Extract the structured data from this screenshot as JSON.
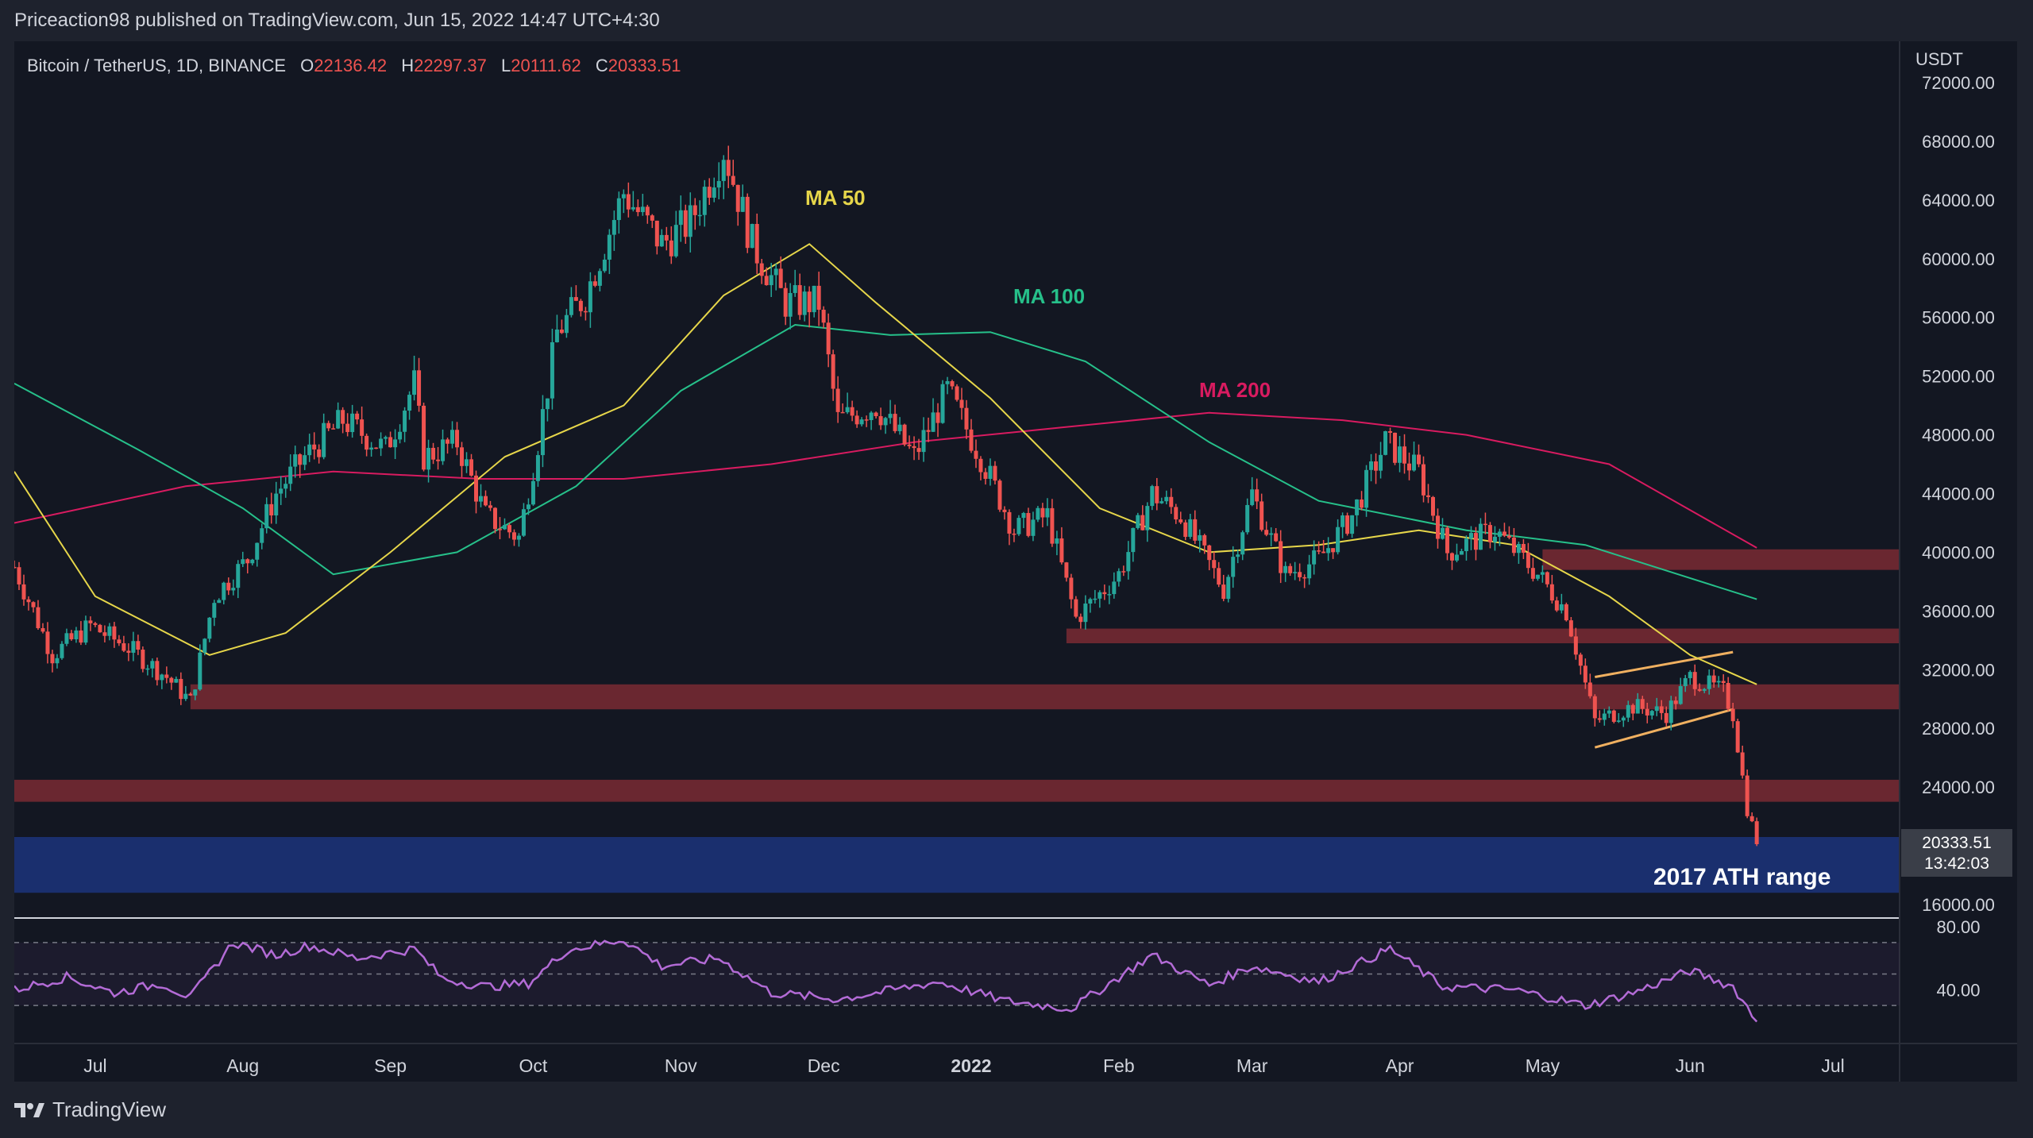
{
  "header": {
    "published_text": "Priceaction98 published on TradingView.com, Jun 15, 2022 14:47 UTC+4:30"
  },
  "legend": {
    "symbol": "Bitcoin / TetherUS, 1D, BINANCE",
    "o_label": "O",
    "o_value": "22136.42",
    "h_label": "H",
    "h_value": "22297.37",
    "l_label": "L",
    "l_value": "20111.62",
    "c_label": "C",
    "c_value": "20333.51"
  },
  "price_axis": {
    "currency": "USDT",
    "ticks": [
      "72000.00",
      "68000.00",
      "64000.00",
      "60000.00",
      "56000.00",
      "52000.00",
      "48000.00",
      "44000.00",
      "40000.00",
      "36000.00",
      "32000.00",
      "28000.00",
      "24000.00",
      "16000.00"
    ],
    "last_price": "20333.51",
    "countdown": "13:42:03"
  },
  "rsi_axis": {
    "ticks": [
      "80.00",
      "40.00"
    ]
  },
  "time_axis": {
    "labels": [
      "Jul",
      "Aug",
      "Sep",
      "Oct",
      "Nov",
      "Dec",
      "2022",
      "Feb",
      "Mar",
      "Apr",
      "May",
      "Jun",
      "Jul"
    ]
  },
  "annotations": {
    "ma50": "MA 50",
    "ma100": "MA 100",
    "ma200": "MA 200",
    "ath_range": "2017 ATH range"
  },
  "colors": {
    "bull": "#26a69a",
    "bear": "#ef5350",
    "ma50": "#e6d64a",
    "ma100": "#26c08a",
    "ma200": "#d81b60",
    "rsi": "#b36bd6",
    "zone": "#7a2a33",
    "ath_zone": "#1a2f6e",
    "wedge": "#f0b060"
  },
  "footer": {
    "brand": "TradingView"
  },
  "chart_data": {
    "type": "candlestick",
    "title": "Bitcoin / TetherUS, 1D, BINANCE",
    "ylabel": "USDT",
    "ylim": [
      16000,
      72000
    ],
    "x_start": "2021-06-14",
    "x_end": "2022-07-15",
    "close_path": [
      [
        "2021-06-14",
        39000
      ],
      [
        "2021-06-22",
        33000
      ],
      [
        "2021-06-30",
        35000
      ],
      [
        "2021-07-08",
        33500
      ],
      [
        "2021-07-16",
        31500
      ],
      [
        "2021-07-21",
        29800
      ],
      [
        "2021-07-26",
        37000
      ],
      [
        "2021-08-02",
        39500
      ],
      [
        "2021-08-08",
        44000
      ],
      [
        "2021-08-14",
        46500
      ],
      [
        "2021-08-22",
        49000
      ],
      [
        "2021-08-31",
        47000
      ],
      [
        "2021-09-06",
        51500
      ],
      [
        "2021-09-08",
        46500
      ],
      [
        "2021-09-15",
        47500
      ],
      [
        "2021-09-21",
        42500
      ],
      [
        "2021-09-28",
        41000
      ],
      [
        "2021-10-02",
        47500
      ],
      [
        "2021-10-06",
        55000
      ],
      [
        "2021-10-12",
        57500
      ],
      [
        "2021-10-20",
        64500
      ],
      [
        "2021-10-28",
        61000
      ],
      [
        "2021-11-03",
        62500
      ],
      [
        "2021-11-10",
        67500
      ],
      [
        "2021-11-16",
        61000
      ],
      [
        "2021-11-23",
        57000
      ],
      [
        "2021-11-30",
        57000
      ],
      [
        "2021-12-04",
        49000
      ],
      [
        "2021-12-12",
        50000
      ],
      [
        "2021-12-20",
        46500
      ],
      [
        "2021-12-27",
        51000
      ],
      [
        "2022-01-03",
        46500
      ],
      [
        "2022-01-10",
        41500
      ],
      [
        "2022-01-17",
        42500
      ],
      [
        "2022-01-23",
        35500
      ],
      [
        "2022-02-01",
        38500
      ],
      [
        "2022-02-08",
        44000
      ],
      [
        "2022-02-14",
        42500
      ],
      [
        "2022-02-23",
        37500
      ],
      [
        "2022-03-01",
        44000
      ],
      [
        "2022-03-08",
        38500
      ],
      [
        "2022-03-15",
        39500
      ],
      [
        "2022-03-22",
        42500
      ],
      [
        "2022-03-29",
        47500
      ],
      [
        "2022-04-05",
        45500
      ],
      [
        "2022-04-11",
        40000
      ],
      [
        "2022-04-21",
        41500
      ],
      [
        "2022-04-30",
        38500
      ],
      [
        "2022-05-06",
        36000
      ],
      [
        "2022-05-10",
        31000
      ],
      [
        "2022-05-12",
        28500
      ],
      [
        "2022-05-20",
        29500
      ],
      [
        "2022-05-27",
        29000
      ],
      [
        "2022-06-01",
        31500
      ],
      [
        "2022-06-08",
        30500
      ],
      [
        "2022-06-10",
        29000
      ],
      [
        "2022-06-13",
        22500
      ],
      [
        "2022-06-15",
        20333
      ]
    ],
    "ma50_path": [
      [
        "2021-06-14",
        45500
      ],
      [
        "2021-07-01",
        37000
      ],
      [
        "2021-07-25",
        33000
      ],
      [
        "2021-08-10",
        34500
      ],
      [
        "2021-09-01",
        40000
      ],
      [
        "2021-09-25",
        46500
      ],
      [
        "2021-10-20",
        50000
      ],
      [
        "2021-11-10",
        57500
      ],
      [
        "2021-11-28",
        61000
      ],
      [
        "2021-12-12",
        57000
      ],
      [
        "2022-01-05",
        50500
      ],
      [
        "2022-01-28",
        43000
      ],
      [
        "2022-02-20",
        40000
      ],
      [
        "2022-03-15",
        40500
      ],
      [
        "2022-04-05",
        41500
      ],
      [
        "2022-04-25",
        40500
      ],
      [
        "2022-05-15",
        37000
      ],
      [
        "2022-06-01",
        33000
      ],
      [
        "2022-06-15",
        31000
      ]
    ],
    "ma100_path": [
      [
        "2021-06-14",
        51500
      ],
      [
        "2021-07-10",
        47000
      ],
      [
        "2021-08-01",
        43000
      ],
      [
        "2021-08-20",
        38500
      ],
      [
        "2021-09-15",
        40000
      ],
      [
        "2021-10-10",
        44500
      ],
      [
        "2021-11-01",
        51000
      ],
      [
        "2021-11-25",
        55500
      ],
      [
        "2021-12-15",
        54800
      ],
      [
        "2022-01-05",
        55000
      ],
      [
        "2022-01-25",
        53000
      ],
      [
        "2022-02-20",
        47500
      ],
      [
        "2022-03-15",
        43500
      ],
      [
        "2022-04-15",
        41500
      ],
      [
        "2022-05-10",
        40500
      ],
      [
        "2022-06-15",
        36800
      ]
    ],
    "ma200_path": [
      [
        "2021-06-14",
        42000
      ],
      [
        "2021-07-20",
        44500
      ],
      [
        "2021-08-20",
        45500
      ],
      [
        "2021-09-20",
        45000
      ],
      [
        "2021-10-20",
        45000
      ],
      [
        "2021-11-20",
        46000
      ],
      [
        "2021-12-20",
        47500
      ],
      [
        "2022-01-20",
        48500
      ],
      [
        "2022-02-20",
        49500
      ],
      [
        "2022-03-20",
        49000
      ],
      [
        "2022-04-15",
        48000
      ],
      [
        "2022-05-15",
        46000
      ],
      [
        "2022-06-15",
        40300
      ]
    ],
    "rsi_path": [
      [
        "2021-06-14",
        40
      ],
      [
        "2021-06-25",
        48
      ],
      [
        "2021-07-05",
        38
      ],
      [
        "2021-07-15",
        44
      ],
      [
        "2021-07-21",
        35
      ],
      [
        "2021-07-30",
        70
      ],
      [
        "2021-08-08",
        62
      ],
      [
        "2021-08-15",
        68
      ],
      [
        "2021-08-25",
        60
      ],
      [
        "2021-09-06",
        66
      ],
      [
        "2021-09-12",
        47
      ],
      [
        "2021-09-21",
        42
      ],
      [
        "2021-09-30",
        44
      ],
      [
        "2021-10-08",
        65
      ],
      [
        "2021-10-20",
        72
      ],
      [
        "2021-10-28",
        55
      ],
      [
        "2021-11-09",
        60
      ],
      [
        "2021-11-20",
        38
      ],
      [
        "2021-12-04",
        34
      ],
      [
        "2021-12-12",
        38
      ],
      [
        "2021-12-25",
        45
      ],
      [
        "2022-01-08",
        33
      ],
      [
        "2022-01-22",
        28
      ],
      [
        "2022-02-08",
        62
      ],
      [
        "2022-02-20",
        43
      ],
      [
        "2022-03-01",
        55
      ],
      [
        "2022-03-15",
        45
      ],
      [
        "2022-03-30",
        66
      ],
      [
        "2022-04-10",
        42
      ],
      [
        "2022-04-25",
        40
      ],
      [
        "2022-05-10",
        30
      ],
      [
        "2022-05-20",
        38
      ],
      [
        "2022-06-01",
        52
      ],
      [
        "2022-06-10",
        42
      ],
      [
        "2022-06-15",
        20
      ]
    ],
    "resistance_zones": [
      {
        "from": "2022-05-01",
        "y": [
          38800,
          40200
        ]
      },
      {
        "from": "2022-01-21",
        "y": [
          33800,
          34800
        ]
      },
      {
        "from": "2021-07-21",
        "y": [
          29300,
          31000
        ]
      },
      {
        "from": "2021-06-14",
        "y": [
          23000,
          24500
        ]
      }
    ],
    "ath_range": {
      "y": [
        16800,
        20600
      ]
    },
    "wedge": {
      "upper": [
        [
          "2022-05-12",
          31500
        ],
        [
          "2022-06-10",
          33200
        ]
      ],
      "lower": [
        [
          "2022-05-12",
          26700
        ],
        [
          "2022-06-10",
          29300
        ]
      ]
    }
  }
}
